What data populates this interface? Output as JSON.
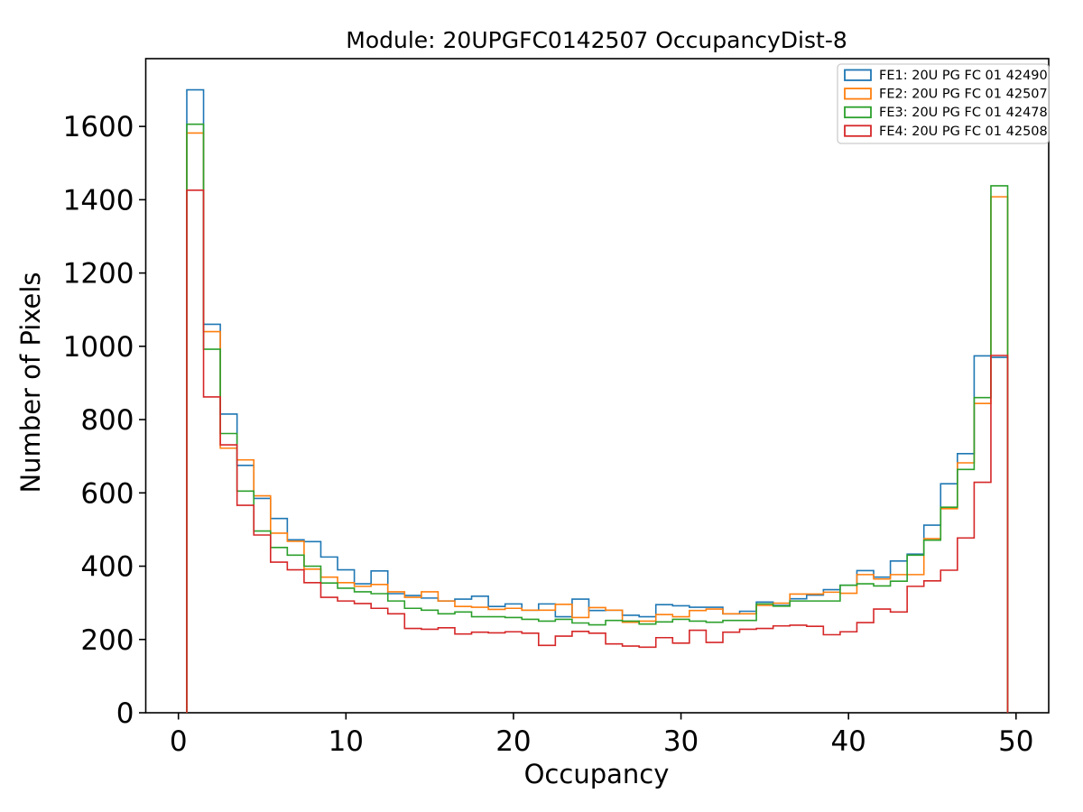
{
  "figure": {
    "title": "Module: 20UPGFC0142507 OccupancyDist-8",
    "xlabel": "Occupancy",
    "ylabel": "Number of Pixels"
  },
  "chart_data": {
    "type": "step-histogram",
    "title": "Module: 20UPGFC0142507 OccupancyDist-8",
    "xlabel": "Occupancy",
    "ylabel": "Number of Pixels",
    "grid": false,
    "legend_position": "upper right",
    "bin_start": 0.5,
    "bin_width": 1,
    "bin_count": 49,
    "xlim": [
      -1.95,
      51.95
    ],
    "ylim": [
      0,
      1785
    ],
    "x_ticks": [
      0,
      10,
      20,
      30,
      40,
      50
    ],
    "y_ticks": [
      0,
      200,
      400,
      600,
      800,
      1000,
      1200,
      1400,
      1600
    ],
    "series": [
      {
        "name": "FE1: 20U PG FC 01 42490",
        "color": "#1f77b4",
        "values": [
          1700,
          1060,
          815,
          675,
          585,
          530,
          472,
          467,
          425,
          390,
          352,
          387,
          325,
          320,
          313,
          305,
          310,
          318,
          290,
          297,
          280,
          297,
          262,
          310,
          279,
          280,
          266,
          262,
          295,
          292,
          288,
          288,
          270,
          277,
          302,
          293,
          311,
          321,
          336,
          348,
          388,
          370,
          414,
          433,
          512,
          625,
          707,
          974,
          970
        ]
      },
      {
        "name": "FE2: 20U PG FC 01 42507",
        "color": "#ff7f0e",
        "values": [
          1582,
          1040,
          722,
          690,
          592,
          490,
          468,
          392,
          370,
          355,
          345,
          350,
          330,
          315,
          330,
          305,
          290,
          288,
          282,
          285,
          280,
          280,
          296,
          260,
          287,
          280,
          247,
          250,
          268,
          262,
          279,
          283,
          270,
          270,
          293,
          299,
          324,
          324,
          329,
          326,
          377,
          365,
          377,
          377,
          475,
          557,
          682,
          844,
          1408
        ]
      },
      {
        "name": "FE3: 20U PG FC 01 42478",
        "color": "#2ca02c",
        "values": [
          1606,
          992,
          762,
          605,
          496,
          451,
          430,
          400,
          354,
          340,
          330,
          325,
          305,
          285,
          280,
          270,
          275,
          262,
          262,
          260,
          255,
          250,
          255,
          245,
          240,
          252,
          250,
          242,
          248,
          255,
          250,
          247,
          252,
          252,
          297,
          291,
          305,
          305,
          305,
          348,
          352,
          346,
          359,
          430,
          471,
          561,
          664,
          860,
          1438
        ]
      },
      {
        "name": "FE4: 20U PG FC 01 42508",
        "color": "#d62728",
        "values": [
          1426,
          862,
          731,
          566,
          485,
          411,
          390,
          355,
          315,
          305,
          298,
          285,
          270,
          230,
          228,
          232,
          215,
          220,
          218,
          221,
          217,
          184,
          209,
          222,
          217,
          188,
          182,
          179,
          205,
          190,
          225,
          192,
          220,
          228,
          230,
          237,
          239,
          236,
          213,
          221,
          246,
          283,
          275,
          345,
          360,
          389,
          477,
          629,
          975
        ]
      }
    ]
  }
}
